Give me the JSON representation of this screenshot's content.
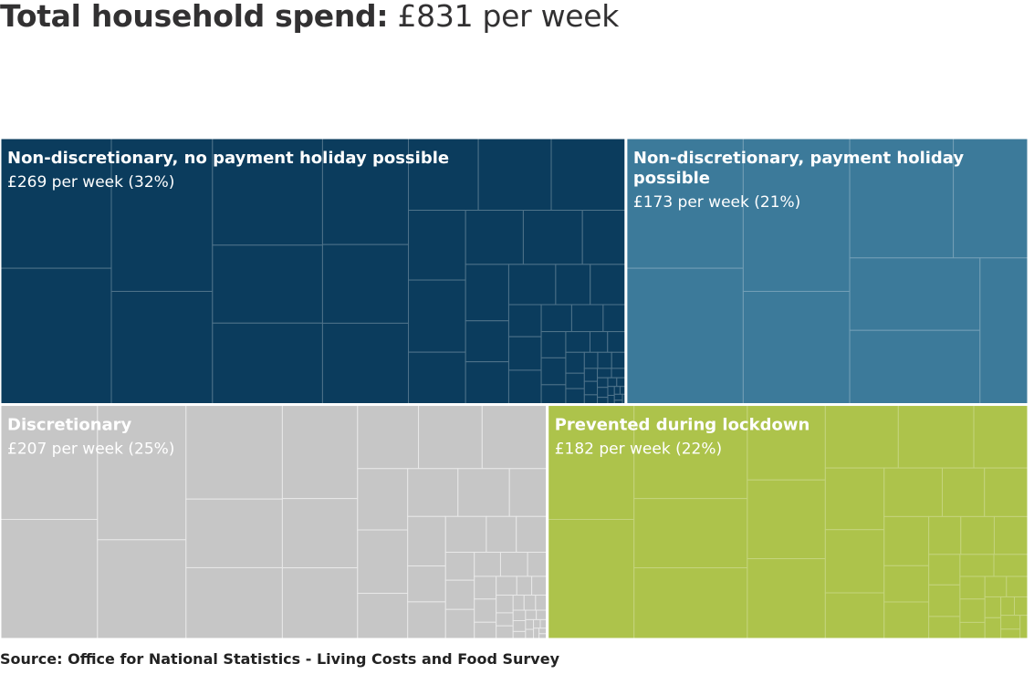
{
  "header": {
    "title_bold": "Total household spend:",
    "title_rest": "£831 per week"
  },
  "footer": {
    "source": "Source: Office for National Statistics - Living Costs and Food Survey"
  },
  "chart_data": {
    "type": "treemap",
    "total_weekly_spend": 831,
    "unit": "£ per week",
    "groups": [
      {
        "name": "Non-discretionary, no payment holiday possible",
        "value_label": "£269 per week (32%)",
        "value": 269,
        "percent": 32,
        "color": "#0b3c5d",
        "tile_count": 60
      },
      {
        "name": "Non-discretionary, payment holiday possible",
        "value_label": "£173 per week (21%)",
        "value": 173,
        "percent": 21,
        "color": "#3c7a9a",
        "tile_count": 9
      },
      {
        "name": "Discretionary",
        "value_label": "£207 per week (25%)",
        "value": 207,
        "percent": 25,
        "color": "#c6c6c6",
        "tile_count": 55
      },
      {
        "name": "Prevented during lockdown",
        "value_label": "£182 per week (22%)",
        "value": 182,
        "percent": 22,
        "color": "#adc34b",
        "tile_count": 40
      }
    ]
  }
}
